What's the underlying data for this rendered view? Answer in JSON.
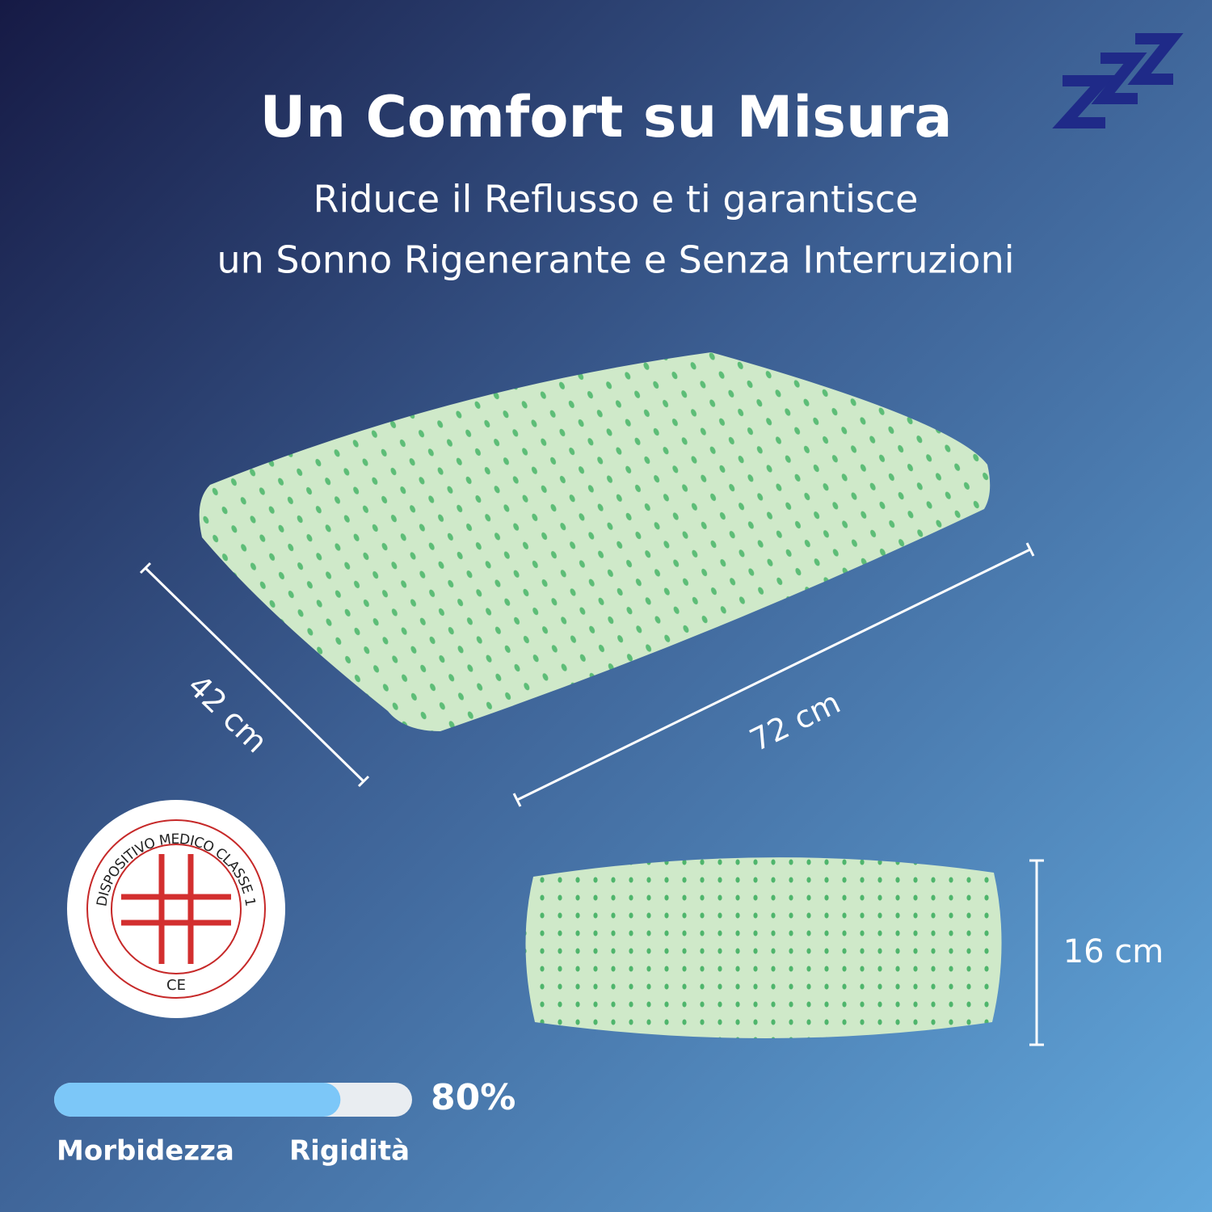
{
  "header": {
    "title": "Un Comfort su Misura",
    "subtitle_lines": [
      "Riduce il Reflusso e ti garantisce",
      "un Sonno Rigenerante e Senza Interruzioni"
    ]
  },
  "dimensions": {
    "width_label": "42 cm",
    "length_label": "72 cm",
    "height_label": "16 cm"
  },
  "badge": {
    "text": "DISPOSITIVO MEDICO CLASSE 1",
    "mark": "CE"
  },
  "firmness": {
    "value": 80,
    "value_label": "80%",
    "range": [
      0,
      100
    ],
    "min_label": "Morbidezza",
    "max_label": "Rigidità"
  }
}
